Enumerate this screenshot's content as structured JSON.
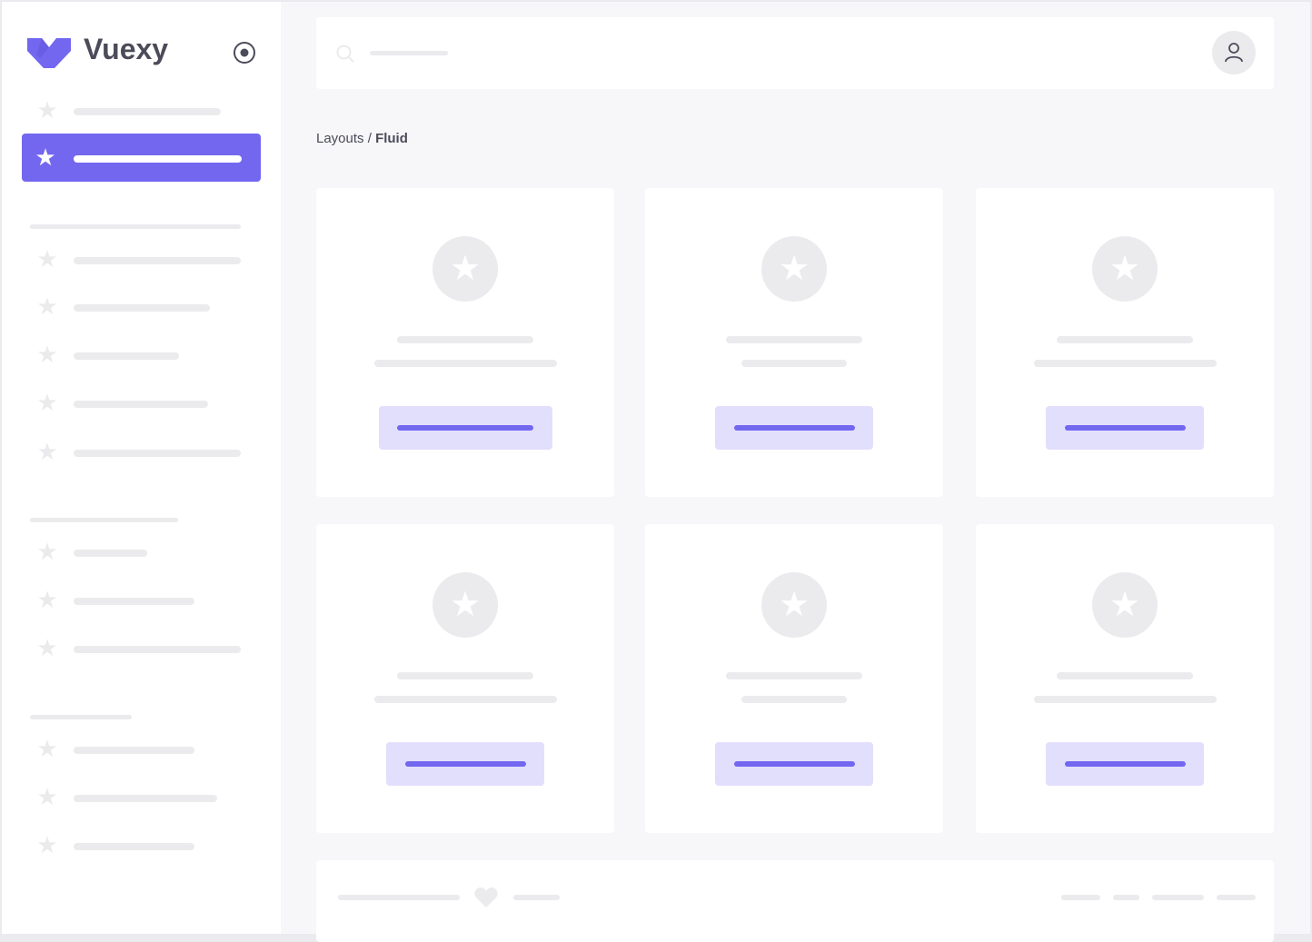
{
  "brand": {
    "name": "Vuexy",
    "color": "#7367f0",
    "logo_icon": "vuexy-logo-icon",
    "pin_icon": "radio-target-icon"
  },
  "header": {
    "search_icon": "search-icon",
    "user_icon": "user-icon"
  },
  "breadcrumb": {
    "parent": "Layouts",
    "separator": " / ",
    "current": "Fluid"
  },
  "colors": {
    "accent": "#7367f0",
    "accent_light": "#e2dffc",
    "skeleton": "#ebebee",
    "background": "#f7f7f9",
    "text": "#4b4b5a"
  }
}
